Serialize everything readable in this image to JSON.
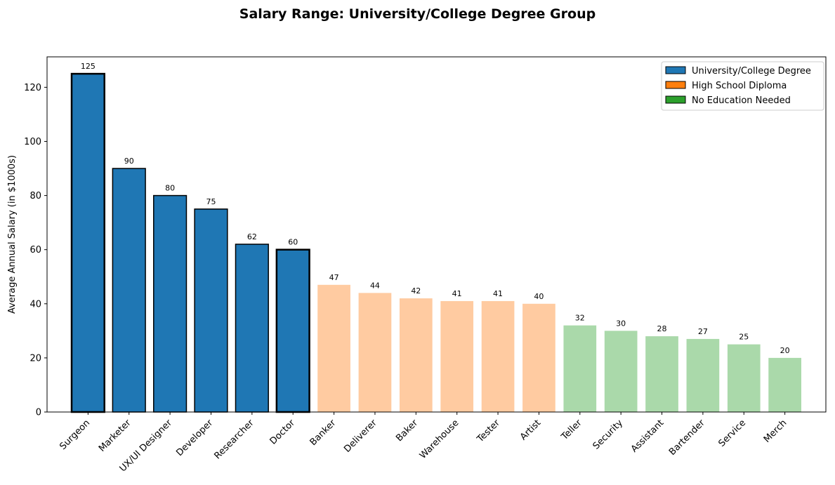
{
  "chart_data": {
    "type": "bar",
    "title": "Salary Range: University/College Degree Group",
    "xlabel": "",
    "ylabel": "Average Annual Salary (in $1000s)",
    "ylim": [
      0,
      131.25
    ],
    "yticks": [
      0,
      20,
      40,
      60,
      80,
      100,
      120
    ],
    "categories": [
      "Surgeon",
      "Marketer",
      "UX/UI Designer",
      "Developer",
      "Researcher",
      "Doctor",
      "Banker",
      "Deliverer",
      "Baker",
      "Warehouse",
      "Tester",
      "Artist",
      "Teller",
      "Security",
      "Assistant",
      "Bartender",
      "Service",
      "Merch"
    ],
    "values": [
      125,
      90,
      80,
      75,
      62,
      60,
      47,
      44,
      42,
      41,
      41,
      40,
      32,
      30,
      28,
      27,
      25,
      20
    ],
    "groups": [
      "University/College Degree",
      "University/College Degree",
      "University/College Degree",
      "University/College Degree",
      "University/College Degree",
      "University/College Degree",
      "High School Diploma",
      "High School Diploma",
      "High School Diploma",
      "High School Diploma",
      "High School Diploma",
      "High School Diploma",
      "No Education Needed",
      "No Education Needed",
      "No Education Needed",
      "No Education Needed",
      "No Education Needed",
      "No Education Needed"
    ],
    "highlighted_group": "University/College Degree",
    "emphasized": [
      "Surgeon",
      "Doctor"
    ],
    "legend": [
      {
        "label": "University/College Degree",
        "color": "#1f77b4"
      },
      {
        "label": "High School Diploma",
        "color": "#ff7f0e"
      },
      {
        "label": "No Education Needed",
        "color": "#2ca02c"
      }
    ],
    "faded_colors": {
      "High School Diploma": "#ffcba1",
      "No Education Needed": "#aad9aa"
    },
    "legend_position": "top-right",
    "grid": false
  }
}
